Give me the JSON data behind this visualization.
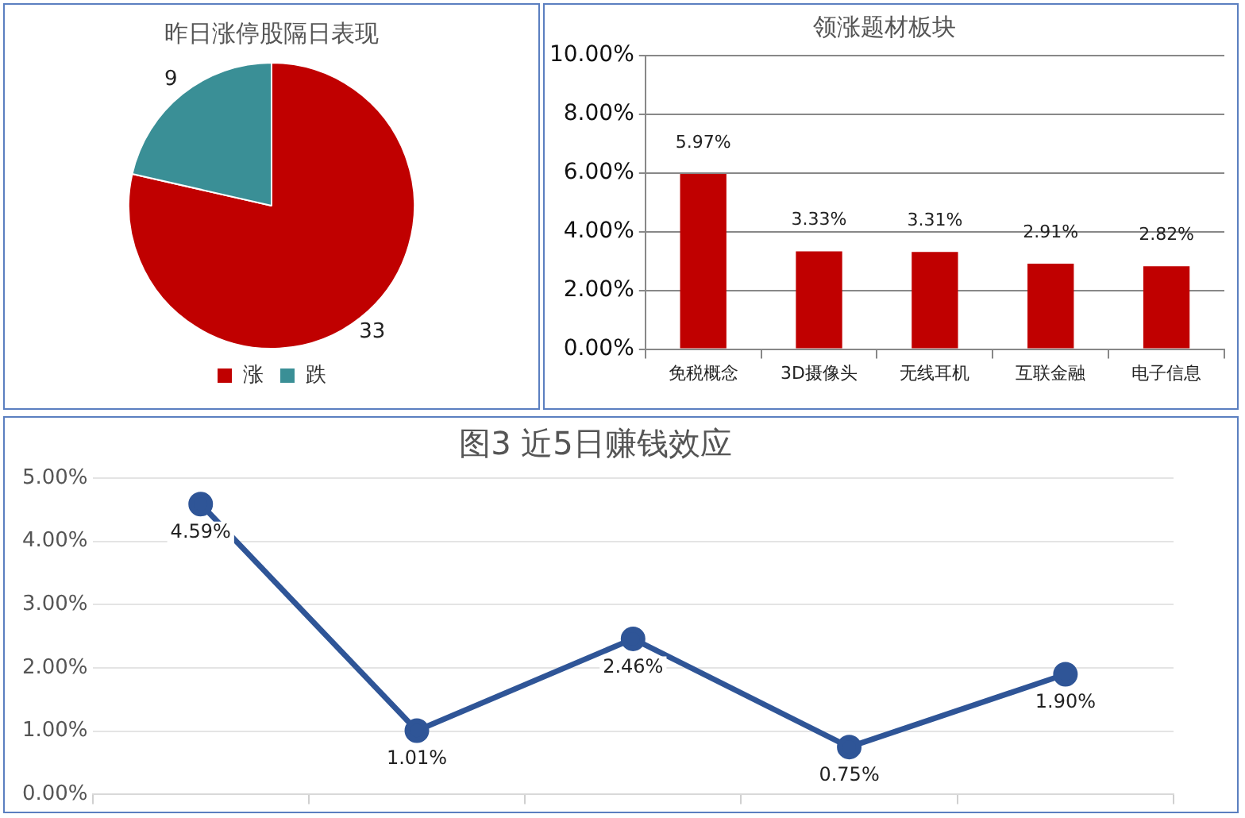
{
  "chart_data": [
    {
      "type": "pie",
      "title": "昨日涨停股隔日表现",
      "categories": [
        "涨",
        "跌"
      ],
      "values": [
        33,
        9
      ],
      "colors": [
        "#c00000",
        "#3a8f96"
      ],
      "data_labels": true,
      "legend": "bottom"
    },
    {
      "type": "bar",
      "title": "领涨题材板块",
      "categories": [
        "免税概念",
        "3D摄像头",
        "无线耳机",
        "互联金融",
        "电子信息"
      ],
      "values": [
        5.97,
        3.33,
        3.31,
        2.91,
        2.82
      ],
      "color": "#c00000",
      "value_labels": [
        "5.97%",
        "3.33%",
        "3.31%",
        "2.91%",
        "2.82%"
      ],
      "ylim": [
        0,
        10
      ],
      "yticks": [
        {
          "value": 0,
          "label": "0.00%"
        },
        {
          "value": 2,
          "label": "2.00%"
        },
        {
          "value": 4,
          "label": "4.00%"
        },
        {
          "value": 6,
          "label": "6.00%"
        },
        {
          "value": 8,
          "label": "8.00%"
        },
        {
          "value": 10,
          "label": "10.00%"
        }
      ],
      "grid": "y"
    },
    {
      "type": "line",
      "title": "图3 近5日赚钱效应",
      "categories": [
        null,
        null,
        null,
        null,
        null
      ],
      "values": [
        4.59,
        1.01,
        2.46,
        0.75,
        1.9
      ],
      "color": "#2f5597",
      "value_labels": [
        "4.59%",
        "1.01%",
        "2.46%",
        "0.75%",
        "1.90%"
      ],
      "ylim": [
        0,
        5
      ],
      "yticks": [
        {
          "value": 0,
          "label": "0.00%"
        },
        {
          "value": 1,
          "label": "1.00%"
        },
        {
          "value": 2,
          "label": "2.00%"
        },
        {
          "value": 3,
          "label": "3.00%"
        },
        {
          "value": 4,
          "label": "4.00%"
        },
        {
          "value": 5,
          "label": "5.00%"
        }
      ],
      "grid": "y",
      "marker": "circle",
      "line_style": "solid",
      "tick_labels": "y"
    }
  ]
}
